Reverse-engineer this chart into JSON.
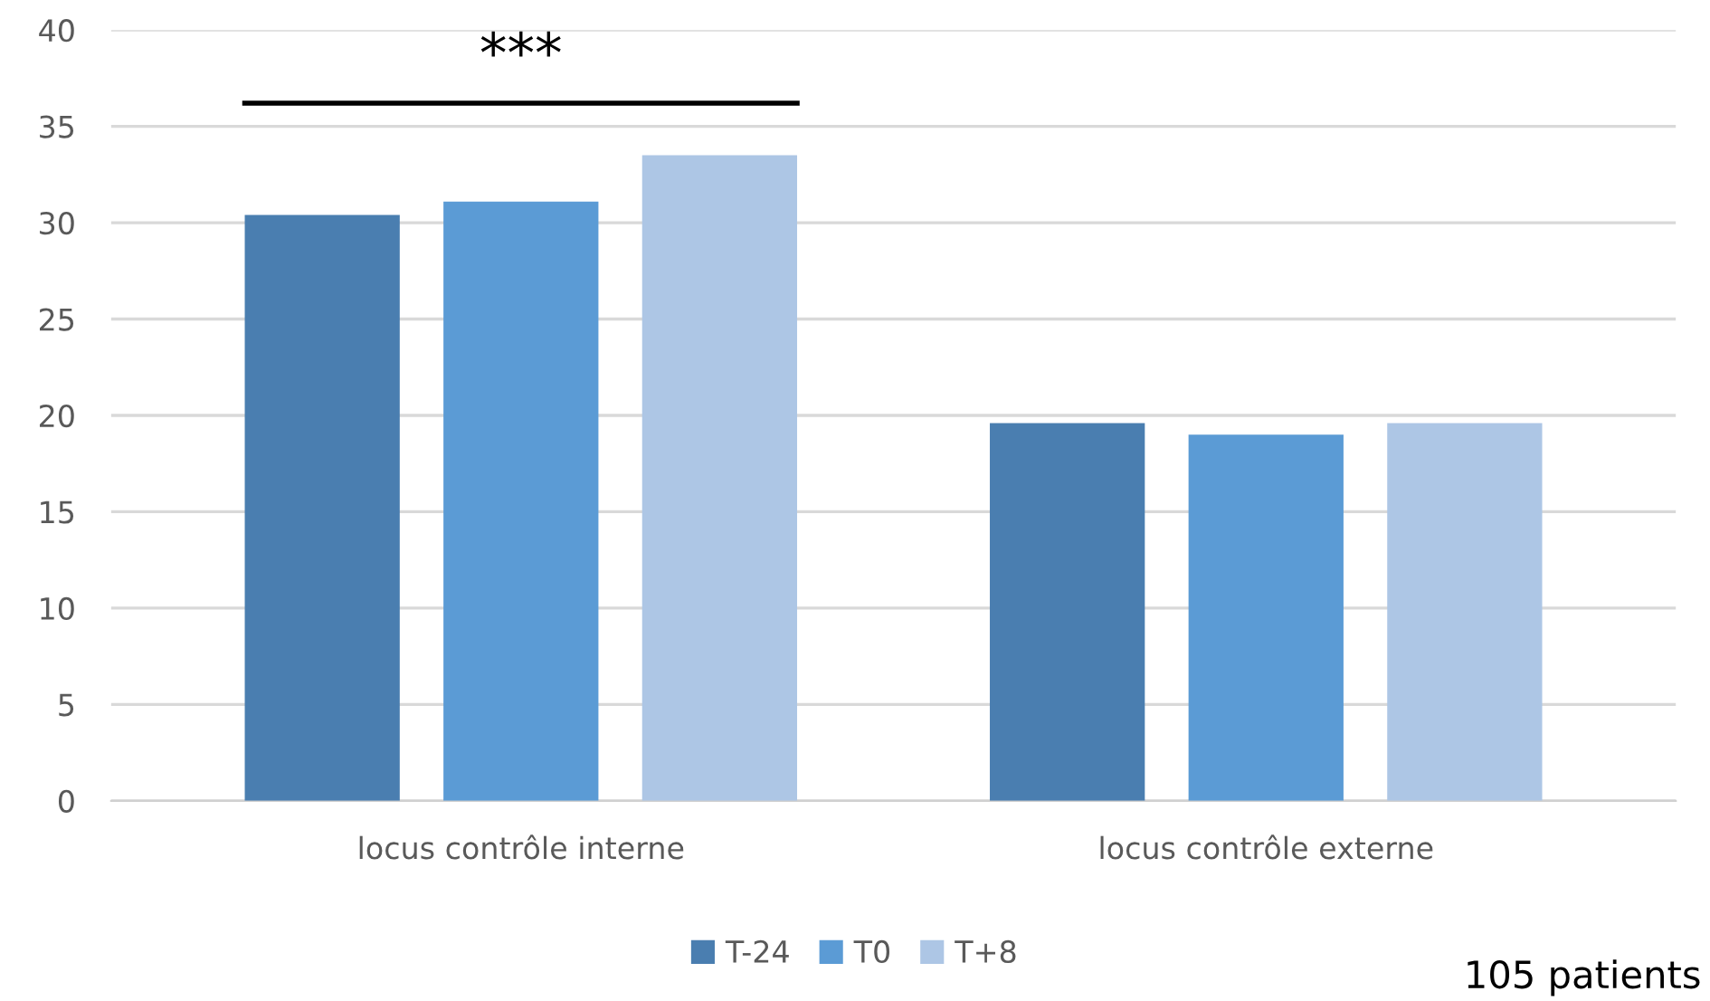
{
  "chart_data": {
    "type": "bar",
    "categories": [
      "locus contrôle interne",
      "locus contrôle externe"
    ],
    "series": [
      {
        "name": "T-24",
        "color": "#4a7eb0",
        "values": [
          30.4,
          19.6
        ]
      },
      {
        "name": "T0",
        "color": "#5b9bd5",
        "values": [
          31.1,
          19.0
        ]
      },
      {
        "name": "T+8",
        "color": "#adc6e5",
        "values": [
          33.5,
          19.6
        ]
      }
    ],
    "ylim": [
      0,
      40
    ],
    "yticks": [
      0,
      5,
      10,
      15,
      20,
      25,
      30,
      35,
      40
    ],
    "grid": "y",
    "legend": "bottom",
    "annotations": [
      "***",
      "105 patients"
    ]
  }
}
